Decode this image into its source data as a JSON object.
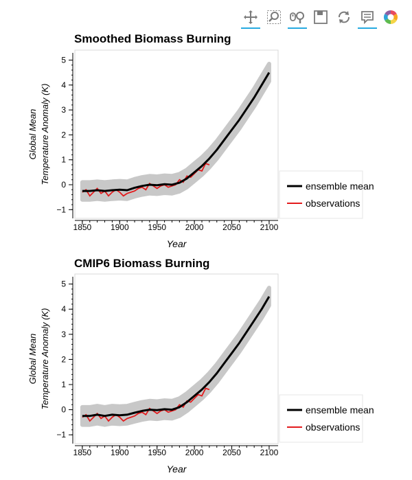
{
  "toolbar": {
    "tools": [
      {
        "name": "pan-icon",
        "active": true
      },
      {
        "name": "box-zoom-icon",
        "active": false
      },
      {
        "name": "wheel-zoom-icon",
        "active": true
      },
      {
        "name": "save-icon",
        "active": false
      },
      {
        "name": "reset-icon",
        "active": false
      },
      {
        "name": "hover-icon",
        "active": true
      },
      {
        "name": "bokeh-logo-icon",
        "active": false
      }
    ]
  },
  "colors": {
    "ensemble": "#000000",
    "observations": "#e31a1c",
    "spread": "#c8c8c8",
    "frame": "#d9d9d9"
  },
  "chart_data": [
    {
      "type": "line",
      "title": "Smoothed Biomass Burning",
      "xlabel": "Year",
      "ylabel_line1": "Global Mean",
      "ylabel_line2": "Temperature Anomaly (K)",
      "xlim": [
        1840,
        2112
      ],
      "ylim": [
        -1.35,
        5.4
      ],
      "x_ticks": [
        1850,
        1900,
        1950,
        2000,
        2050,
        2100
      ],
      "y_ticks": [
        -1,
        0,
        1,
        2,
        3,
        4,
        5
      ],
      "legend": [
        "ensemble mean",
        "observations"
      ],
      "legend_position": "right",
      "series": [
        {
          "name": "ensemble mean",
          "x": [
            1850,
            1860,
            1870,
            1880,
            1890,
            1900,
            1910,
            1920,
            1930,
            1940,
            1950,
            1960,
            1970,
            1980,
            1990,
            2000,
            2010,
            2020,
            2030,
            2040,
            2050,
            2060,
            2070,
            2080,
            2090,
            2100
          ],
          "y": [
            -0.25,
            -0.25,
            -0.22,
            -0.25,
            -0.22,
            -0.2,
            -0.22,
            -0.12,
            -0.05,
            0.0,
            -0.02,
            0.02,
            0.0,
            0.08,
            0.25,
            0.5,
            0.75,
            1.05,
            1.4,
            1.8,
            2.2,
            2.6,
            3.05,
            3.5,
            4.0,
            4.5
          ]
        },
        {
          "name": "observations",
          "x": [
            1850,
            1855,
            1860,
            1865,
            1870,
            1875,
            1880,
            1885,
            1890,
            1895,
            1900,
            1905,
            1910,
            1915,
            1920,
            1925,
            1930,
            1935,
            1940,
            1945,
            1950,
            1955,
            1960,
            1965,
            1970,
            1975,
            1980,
            1985,
            1990,
            1995,
            2000,
            2005,
            2010,
            2015,
            2020
          ],
          "y": [
            -0.3,
            -0.2,
            -0.45,
            -0.3,
            -0.15,
            -0.35,
            -0.25,
            -0.45,
            -0.3,
            -0.2,
            -0.3,
            -0.45,
            -0.35,
            -0.3,
            -0.25,
            -0.15,
            -0.1,
            -0.2,
            0.05,
            -0.05,
            -0.15,
            -0.05,
            0.0,
            -0.1,
            -0.05,
            0.0,
            0.2,
            0.1,
            0.35,
            0.3,
            0.45,
            0.6,
            0.55,
            0.85,
            0.8
          ]
        }
      ],
      "spread": {
        "upper_offset": 0.35,
        "lower_offset": 0.35
      }
    },
    {
      "type": "line",
      "title": "CMIP6 Biomass Burning",
      "xlabel": "Year",
      "ylabel_line1": "Global Mean",
      "ylabel_line2": "Temperature Anomaly (K)",
      "xlim": [
        1840,
        2112
      ],
      "ylim": [
        -1.35,
        5.4
      ],
      "x_ticks": [
        1850,
        1900,
        1950,
        2000,
        2050,
        2100
      ],
      "y_ticks": [
        -1,
        0,
        1,
        2,
        3,
        4,
        5
      ],
      "legend": [
        "ensemble mean",
        "observations"
      ],
      "legend_position": "right",
      "series": [
        {
          "name": "ensemble mean",
          "x": [
            1850,
            1860,
            1870,
            1880,
            1890,
            1900,
            1910,
            1920,
            1930,
            1940,
            1950,
            1960,
            1970,
            1980,
            1990,
            2000,
            2010,
            2020,
            2030,
            2040,
            2050,
            2060,
            2070,
            2080,
            2090,
            2100
          ],
          "y": [
            -0.25,
            -0.25,
            -0.2,
            -0.25,
            -0.2,
            -0.22,
            -0.2,
            -0.12,
            -0.05,
            0.0,
            -0.02,
            0.02,
            0.0,
            0.1,
            0.3,
            0.55,
            0.8,
            1.1,
            1.45,
            1.85,
            2.25,
            2.65,
            3.1,
            3.55,
            4.0,
            4.5
          ]
        },
        {
          "name": "observations",
          "x": [
            1850,
            1855,
            1860,
            1865,
            1870,
            1875,
            1880,
            1885,
            1890,
            1895,
            1900,
            1905,
            1910,
            1915,
            1920,
            1925,
            1930,
            1935,
            1940,
            1945,
            1950,
            1955,
            1960,
            1965,
            1970,
            1975,
            1980,
            1985,
            1990,
            1995,
            2000,
            2005,
            2010,
            2015,
            2020
          ],
          "y": [
            -0.3,
            -0.2,
            -0.45,
            -0.3,
            -0.15,
            -0.35,
            -0.25,
            -0.45,
            -0.3,
            -0.2,
            -0.3,
            -0.45,
            -0.35,
            -0.3,
            -0.25,
            -0.15,
            -0.1,
            -0.2,
            0.05,
            -0.05,
            -0.15,
            -0.05,
            0.0,
            -0.1,
            -0.05,
            0.0,
            0.2,
            0.1,
            0.35,
            0.3,
            0.45,
            0.6,
            0.55,
            0.85,
            0.8
          ]
        }
      ],
      "spread": {
        "upper_offset": 0.35,
        "lower_offset": 0.35
      }
    }
  ]
}
